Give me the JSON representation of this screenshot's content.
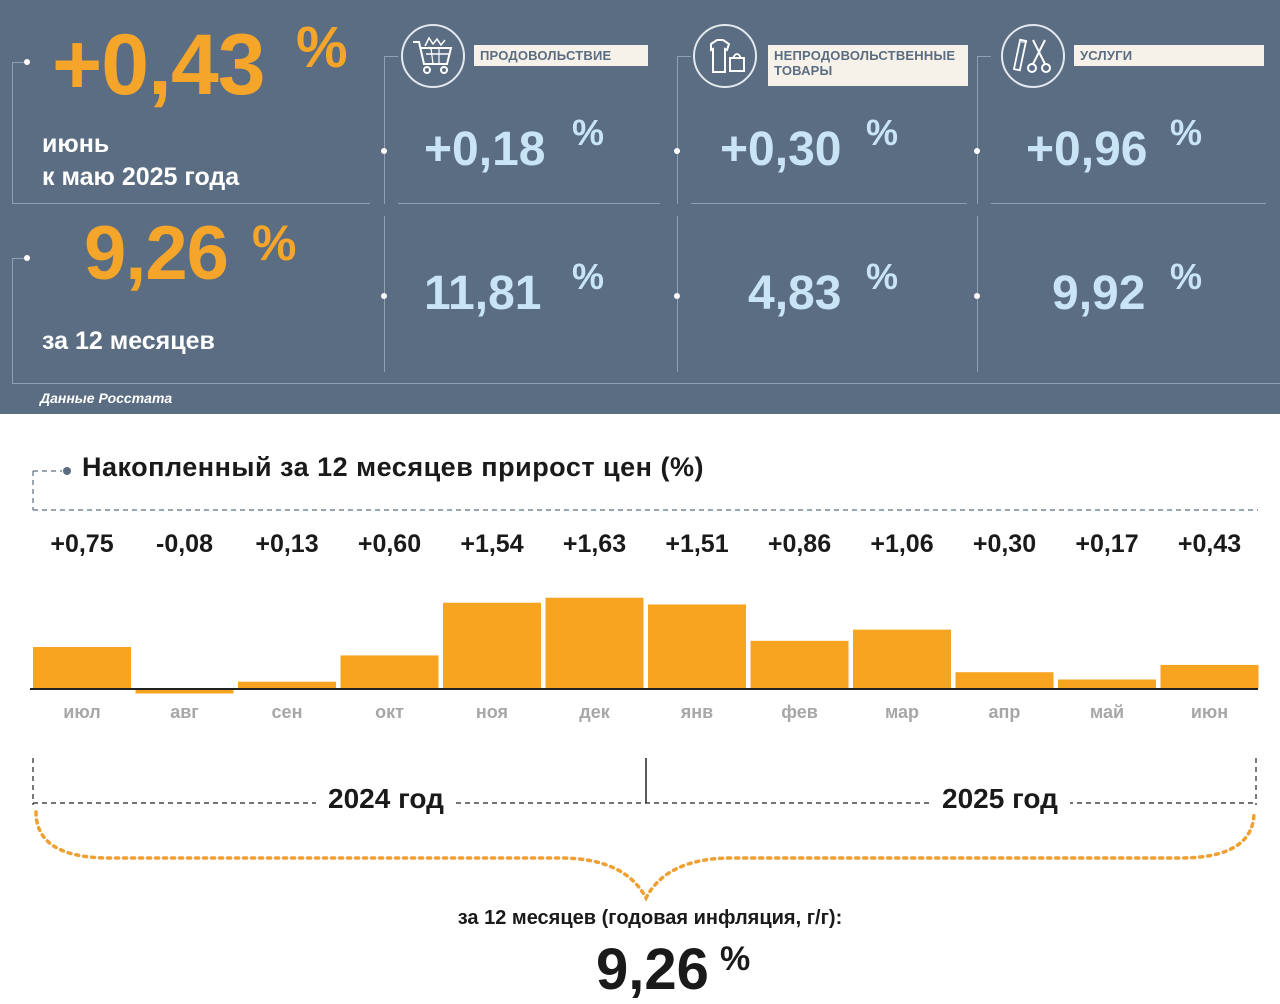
{
  "header": {
    "monthly": {
      "value": "+0,43",
      "pct": "%",
      "label_line1": "июнь",
      "label_line2": "к маю 2025 года"
    },
    "annual": {
      "value": "9,26",
      "pct": "%",
      "label": "за 12 месяцев"
    },
    "categories": [
      {
        "name": "ПРОДОВОЛЬСТВИЕ",
        "icon": "shopping-cart-icon",
        "monthly": "+0,18",
        "annual": "11,81"
      },
      {
        "name_line1": "НЕПРОДОВОЛЬСТВЕННЫЕ",
        "name_line2": "ТОВАРЫ",
        "icon": "clothes-bag-icon",
        "monthly": "+0,30",
        "annual": "4,83"
      },
      {
        "name": "УСЛУГИ",
        "icon": "scissors-comb-icon",
        "monthly": "+0,96",
        "annual": "9,92"
      }
    ],
    "pct_sign": "%",
    "source": "Данные Росстата"
  },
  "colors": {
    "panel_bg": "#5a6d82",
    "accent_orange": "#f5a529",
    "light_blue": "#c9e4f4",
    "bar": "#f7a520",
    "month_text": "#a7a7a7"
  },
  "chart_data": {
    "type": "bar",
    "title": "Накопленный за 12 месяцев прирост цен (%)",
    "categories": [
      "июл",
      "авг",
      "сен",
      "окт",
      "ноя",
      "дек",
      "янв",
      "фев",
      "мар",
      "апр",
      "май",
      "июн"
    ],
    "value_labels": [
      "+0,75",
      "-0,08",
      "+0,13",
      "+0,60",
      "+1,54",
      "+1,63",
      "+1,51",
      "+0,86",
      "+1,06",
      "+0,30",
      "+0,17",
      "+0,43"
    ],
    "values": [
      0.75,
      -0.08,
      0.13,
      0.6,
      1.54,
      1.63,
      1.51,
      0.86,
      1.06,
      0.3,
      0.17,
      0.43
    ],
    "year_groups": [
      {
        "label": "2024 год",
        "categories": [
          "июл",
          "авг",
          "сен",
          "окт",
          "ноя",
          "дек"
        ]
      },
      {
        "label": "2025 год",
        "categories": [
          "янв",
          "фев",
          "мар",
          "апр",
          "май",
          "июн"
        ]
      }
    ],
    "summary_label": "за 12 месяцев (годовая инфляция, г/г):",
    "summary_value": "9,26",
    "summary_unit": "%"
  }
}
